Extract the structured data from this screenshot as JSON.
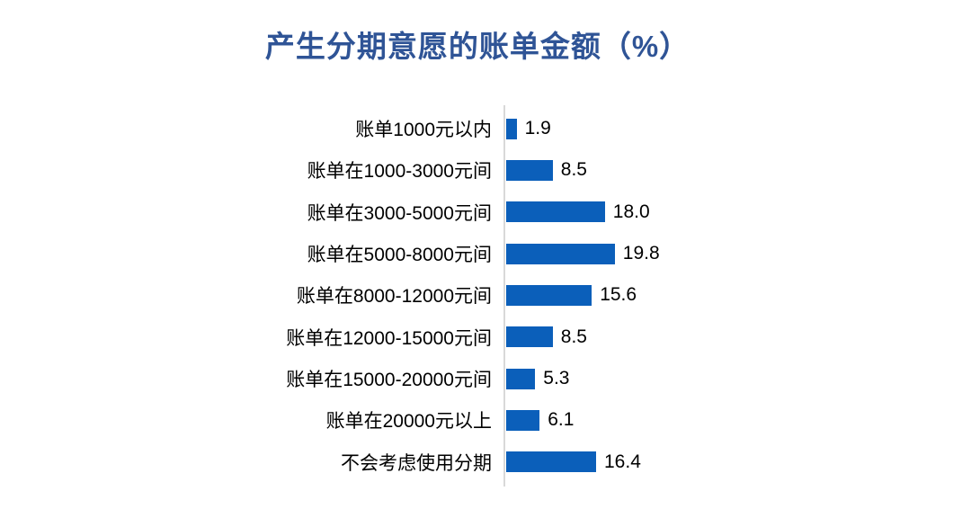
{
  "chart_data": {
    "type": "bar",
    "orientation": "horizontal",
    "title": "产生分期意愿的账单金额（%）",
    "categories": [
      "账单1000元以内",
      "账单在1000-3000元间",
      "账单在3000-5000元间",
      "账单在5000-8000元间",
      "账单在8000-12000元间",
      "账单在12000-15000元间",
      "账单在15000-20000元间",
      "账单在20000元以上",
      "不会考虑使用分期"
    ],
    "values": [
      1.9,
      8.5,
      18.0,
      19.8,
      15.6,
      8.5,
      5.3,
      6.1,
      16.4
    ],
    "value_labels": [
      "1.9",
      "8.5",
      "18.0",
      "19.8",
      "15.6",
      "8.5",
      "5.3",
      "6.1",
      "16.4"
    ],
    "data_labels_position": "outside-end",
    "legend": false,
    "grid": false,
    "colors": {
      "bar": "#0B5FBA",
      "title": "#2F5496",
      "axis_line": "#D9D9D9",
      "category_text": "#000000",
      "value_text": "#000000",
      "background": "#FFFFFF"
    }
  }
}
